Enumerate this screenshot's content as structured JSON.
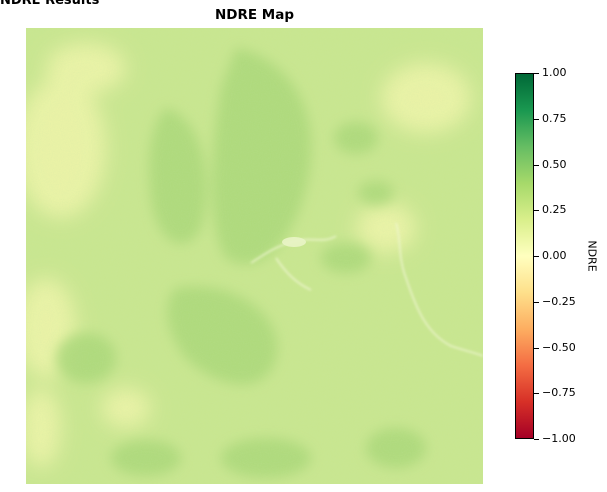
{
  "header_fragment": "NDRE Results",
  "title": "NDRE Map",
  "colorbar": {
    "label": "NDRE",
    "min": -1.0,
    "max": 1.0,
    "colormap": "RdYlGn",
    "stops": [
      "#a50026",
      "#d73027",
      "#f46d43",
      "#fdae61",
      "#fee08b",
      "#ffffbf",
      "#d9ef8b",
      "#a6d96a",
      "#66bd63",
      "#1a9850",
      "#006837"
    ],
    "ticks": [
      {
        "value": 1.0,
        "label": "1.00"
      },
      {
        "value": 0.75,
        "label": "0.75"
      },
      {
        "value": 0.5,
        "label": "0.50"
      },
      {
        "value": 0.25,
        "label": "0.25"
      },
      {
        "value": 0.0,
        "label": "0.00"
      },
      {
        "value": -0.25,
        "label": "−0.25"
      },
      {
        "value": -0.5,
        "label": "−0.50"
      },
      {
        "value": -0.75,
        "label": "−0.75"
      },
      {
        "value": -1.0,
        "label": "−1.00"
      }
    ]
  },
  "map": {
    "base_color": "#c9e68f",
    "dense_color": "#a8d878",
    "sparse_color": "#f4f6ad",
    "water_color": "#e6f2c4"
  }
}
